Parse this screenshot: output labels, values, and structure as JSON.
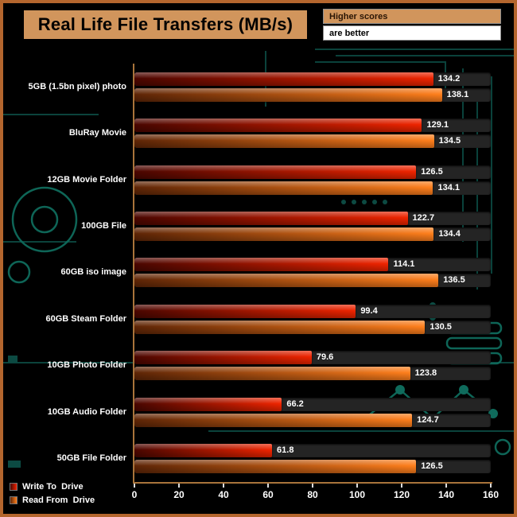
{
  "title": "Real Life File Transfers (MB/s)",
  "notes": {
    "line1": "Higher scores",
    "line2": "are better"
  },
  "colors": {
    "frame_border": "#b4662e",
    "title_bg": "#d1955c",
    "note1_bg": "#d1955c",
    "note2_bg": "#ffffff",
    "track": "#242424",
    "axis": "#a9743b",
    "circuit": "#0f6b5c"
  },
  "chart_data": {
    "type": "bar",
    "orientation": "horizontal",
    "title": "Real Life File Transfers (MB/s)",
    "higher_is_better": true,
    "categories": [
      "5GB (1.5bn pixel) photo",
      "BluRay Movie",
      "12GB Movie Folder",
      "100GB File",
      "60GB iso image",
      "60GB Steam Folder",
      "10GB Photo Folder",
      "10GB Audio Folder",
      "50GB File Folder"
    ],
    "series": [
      {
        "name": "Write To  Drive",
        "color_start": "#4a0600",
        "color_end": "#ef2400",
        "values": [
          134.2,
          129.1,
          126.5,
          122.7,
          114.1,
          99.4,
          79.6,
          66.2,
          61.8
        ]
      },
      {
        "name": "Read From  Drive",
        "color_start": "#5e2506",
        "color_end": "#ff7f1c",
        "values": [
          138.1,
          134.5,
          134.1,
          134.4,
          136.5,
          130.5,
          123.8,
          124.7,
          126.5
        ]
      }
    ],
    "xlim": [
      0,
      160
    ],
    "x_ticks": [
      0,
      20,
      40,
      60,
      80,
      100,
      120,
      140,
      160
    ],
    "value_decimals": 1,
    "legend_position": "bottom-left",
    "grid": false
  }
}
